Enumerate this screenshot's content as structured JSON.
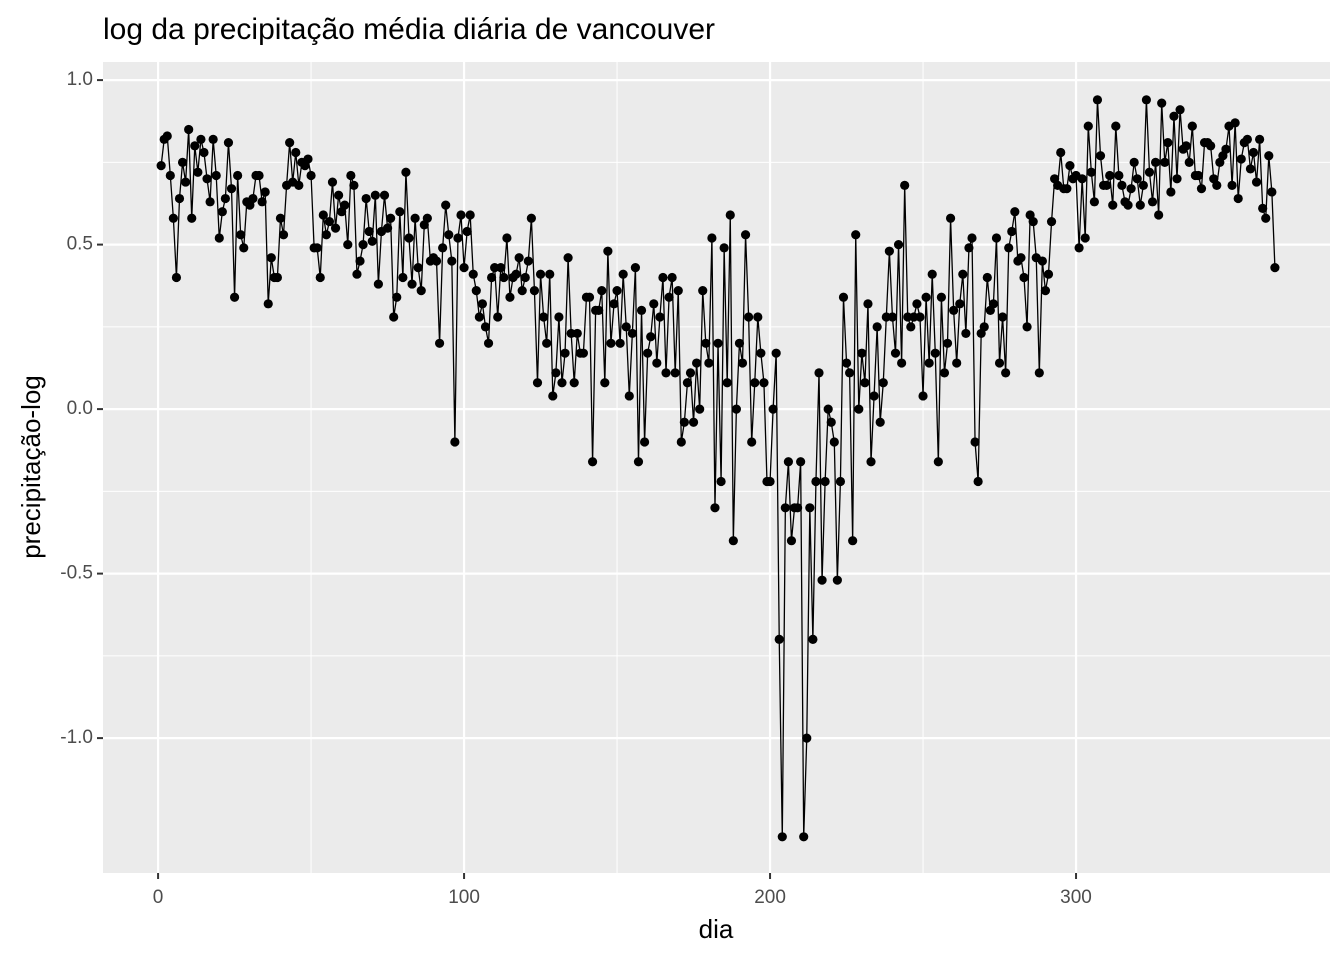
{
  "chart_data": {
    "type": "line",
    "title": "log da precipitação média diária de vancouver",
    "x_label": "dia",
    "y_label": "precipitação-log",
    "color": "#000000",
    "grid": true,
    "xlim": [
      -18,
      383
    ],
    "ylim": [
      -1.41,
      1.055
    ],
    "xticks": [
      0,
      100,
      200,
      300
    ],
    "yticks": [
      {
        "value": -1,
        "label": "-1.0"
      },
      -0.5,
      {
        "value": 0,
        "label": "0.0"
      },
      0.5,
      {
        "value": 1,
        "label": "1.0"
      }
    ],
    "x": [
      1,
      2,
      3,
      4,
      5,
      6,
      7,
      8,
      9,
      10,
      11,
      12,
      13,
      14,
      15,
      16,
      17,
      18,
      19,
      20,
      21,
      22,
      23,
      24,
      25,
      26,
      27,
      28,
      29,
      30,
      31,
      32,
      33,
      34,
      35,
      36,
      37,
      38,
      39,
      40,
      41,
      42,
      43,
      44,
      45,
      46,
      47,
      48,
      49,
      50,
      51,
      52,
      53,
      54,
      55,
      56,
      57,
      58,
      59,
      60,
      61,
      62,
      63,
      64,
      65,
      66,
      67,
      68,
      69,
      70,
      71,
      72,
      73,
      74,
      75,
      76,
      77,
      78,
      79,
      80,
      81,
      82,
      83,
      84,
      85,
      86,
      87,
      88,
      89,
      90,
      91,
      92,
      93,
      94,
      95,
      96,
      97,
      98,
      99,
      100,
      101,
      102,
      103,
      104,
      105,
      106,
      107,
      108,
      109,
      110,
      111,
      112,
      113,
      114,
      115,
      116,
      117,
      118,
      119,
      120,
      121,
      122,
      123,
      124,
      125,
      126,
      127,
      128,
      129,
      130,
      131,
      132,
      133,
      134,
      135,
      136,
      137,
      138,
      139,
      140,
      141,
      142,
      143,
      144,
      145,
      146,
      147,
      148,
      149,
      150,
      151,
      152,
      153,
      154,
      155,
      156,
      157,
      158,
      159,
      160,
      161,
      162,
      163,
      164,
      165,
      166,
      167,
      168,
      169,
      170,
      171,
      172,
      173,
      174,
      175,
      176,
      177,
      178,
      179,
      180,
      181,
      182,
      183,
      184,
      185,
      186,
      187,
      188,
      189,
      190,
      191,
      192,
      193,
      194,
      195,
      196,
      197,
      198,
      199,
      200,
      201,
      202,
      203,
      204,
      205,
      206,
      207,
      208,
      209,
      210,
      211,
      212,
      213,
      214,
      215,
      216,
      217,
      218,
      219,
      220,
      221,
      222,
      223,
      224,
      225,
      226,
      227,
      228,
      229,
      230,
      231,
      232,
      233,
      234,
      235,
      236,
      237,
      238,
      239,
      240,
      241,
      242,
      243,
      244,
      245,
      246,
      247,
      248,
      249,
      250,
      251,
      252,
      253,
      254,
      255,
      256,
      257,
      258,
      259,
      260,
      261,
      262,
      263,
      264,
      265,
      266,
      267,
      268,
      269,
      270,
      271,
      272,
      273,
      274,
      275,
      276,
      277,
      278,
      279,
      280,
      281,
      282,
      283,
      284,
      285,
      286,
      287,
      288,
      289,
      290,
      291,
      292,
      293,
      294,
      295,
      296,
      297,
      298,
      299,
      300,
      301,
      302,
      303,
      304,
      305,
      306,
      307,
      308,
      309,
      310,
      311,
      312,
      313,
      314,
      315,
      316,
      317,
      318,
      319,
      320,
      321,
      322,
      323,
      324,
      325,
      326,
      327,
      328,
      329,
      330,
      331,
      332,
      333,
      334,
      335,
      336,
      337,
      338,
      339,
      340,
      341,
      342,
      343,
      344,
      345,
      346,
      347,
      348,
      349,
      350,
      351,
      352,
      353,
      354,
      355,
      356,
      357,
      358,
      359,
      360,
      361,
      362,
      363,
      364,
      365
    ],
    "values": [
      0.74,
      0.82,
      0.83,
      0.71,
      0.58,
      0.4,
      0.64,
      0.75,
      0.69,
      0.85,
      0.58,
      0.8,
      0.72,
      0.82,
      0.78,
      0.7,
      0.63,
      0.82,
      0.71,
      0.52,
      0.6,
      0.64,
      0.81,
      0.67,
      0.34,
      0.71,
      0.53,
      0.49,
      0.63,
      0.62,
      0.64,
      0.71,
      0.71,
      0.63,
      0.66,
      0.32,
      0.46,
      0.4,
      0.4,
      0.58,
      0.53,
      0.68,
      0.81,
      0.69,
      0.78,
      0.68,
      0.75,
      0.74,
      0.76,
      0.71,
      0.49,
      0.49,
      0.4,
      0.59,
      0.53,
      0.57,
      0.69,
      0.55,
      0.65,
      0.6,
      0.62,
      0.5,
      0.71,
      0.68,
      0.41,
      0.45,
      0.5,
      0.64,
      0.54,
      0.51,
      0.65,
      0.38,
      0.54,
      0.65,
      0.55,
      0.58,
      0.28,
      0.34,
      0.6,
      0.4,
      0.72,
      0.52,
      0.38,
      0.58,
      0.43,
      0.36,
      0.56,
      0.58,
      0.45,
      0.46,
      0.45,
      0.2,
      0.49,
      0.62,
      0.53,
      0.45,
      -0.1,
      0.52,
      0.59,
      0.43,
      0.54,
      0.59,
      0.41,
      0.36,
      0.28,
      0.32,
      0.25,
      0.2,
      0.4,
      0.43,
      0.28,
      0.43,
      0.4,
      0.52,
      0.34,
      0.4,
      0.41,
      0.46,
      0.36,
      0.4,
      0.45,
      0.58,
      0.36,
      0.08,
      0.41,
      0.28,
      0.2,
      0.41,
      0.04,
      0.11,
      0.28,
      0.08,
      0.17,
      0.46,
      0.23,
      0.08,
      0.23,
      0.17,
      0.17,
      0.34,
      0.34,
      -0.16,
      0.3,
      0.3,
      0.36,
      0.08,
      0.48,
      0.2,
      0.32,
      0.36,
      0.2,
      0.41,
      0.25,
      0.04,
      0.23,
      0.43,
      -0.16,
      0.3,
      -0.1,
      0.17,
      0.22,
      0.32,
      0.14,
      0.28,
      0.4,
      0.11,
      0.34,
      0.4,
      0.11,
      0.36,
      -0.1,
      -0.04,
      0.08,
      0.11,
      -0.04,
      0.14,
      0.0,
      0.36,
      0.2,
      0.14,
      0.52,
      -0.3,
      0.2,
      -0.22,
      0.49,
      0.08,
      0.59,
      -0.4,
      0.0,
      0.2,
      0.14,
      0.53,
      0.28,
      -0.1,
      0.08,
      0.28,
      0.17,
      0.08,
      -0.22,
      -0.22,
      0.0,
      0.17,
      -0.7,
      -1.3,
      -0.3,
      -0.16,
      -0.4,
      -0.3,
      -0.3,
      -0.16,
      -1.3,
      -1.0,
      -0.3,
      -0.7,
      -0.22,
      0.11,
      -0.52,
      -0.22,
      0.0,
      -0.04,
      -0.1,
      -0.52,
      -0.22,
      0.34,
      0.14,
      0.11,
      -0.4,
      0.53,
      0.0,
      0.17,
      0.08,
      0.32,
      -0.16,
      0.04,
      0.25,
      -0.04,
      0.08,
      0.28,
      0.48,
      0.28,
      0.17,
      0.5,
      0.14,
      0.68,
      0.28,
      0.25,
      0.28,
      0.32,
      0.28,
      0.04,
      0.34,
      0.14,
      0.41,
      0.17,
      -0.16,
      0.34,
      0.11,
      0.2,
      0.58,
      0.3,
      0.14,
      0.32,
      0.41,
      0.23,
      0.49,
      0.52,
      -0.1,
      -0.22,
      0.23,
      0.25,
      0.4,
      0.3,
      0.32,
      0.52,
      0.14,
      0.28,
      0.11,
      0.49,
      0.54,
      0.6,
      0.45,
      0.46,
      0.4,
      0.25,
      0.59,
      0.57,
      0.46,
      0.11,
      0.45,
      0.36,
      0.41,
      0.57,
      0.7,
      0.68,
      0.78,
      0.67,
      0.67,
      0.74,
      0.7,
      0.71,
      0.49,
      0.7,
      0.52,
      0.86,
      0.72,
      0.63,
      0.94,
      0.77,
      0.68,
      0.68,
      0.71,
      0.62,
      0.86,
      0.71,
      0.68,
      0.63,
      0.62,
      0.67,
      0.75,
      0.7,
      0.62,
      0.68,
      0.94,
      0.72,
      0.63,
      0.75,
      0.59,
      0.93,
      0.75,
      0.81,
      0.66,
      0.89,
      0.7,
      0.91,
      0.79,
      0.8,
      0.75,
      0.86,
      0.71,
      0.71,
      0.67,
      0.81,
      0.81,
      0.8,
      0.7,
      0.68,
      0.75,
      0.77,
      0.79,
      0.86,
      0.68,
      0.87,
      0.64,
      0.76,
      0.81,
      0.82,
      0.73,
      0.78,
      0.69,
      0.82,
      0.61,
      0.58,
      0.77,
      0.66,
      0.43
    ]
  }
}
